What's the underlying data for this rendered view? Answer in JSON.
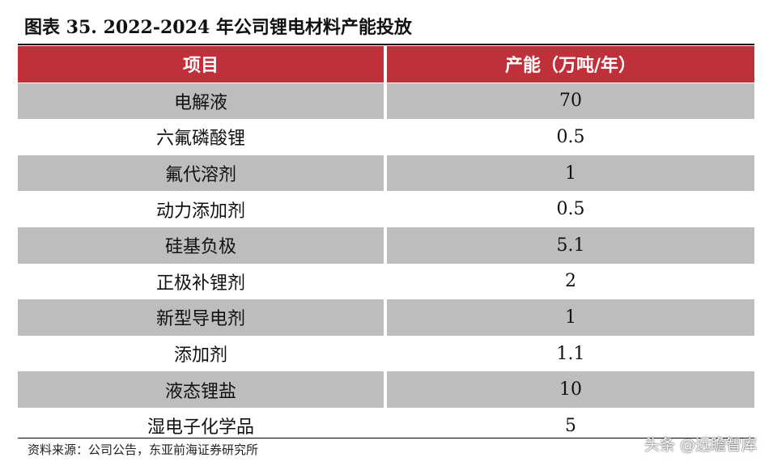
{
  "title": "图表 35. 2022-2024 年公司锂电材料产能投放",
  "table": {
    "headers": [
      "项目",
      "产能（万吨/年）"
    ],
    "rows": [
      {
        "item": "电解液",
        "capacity": "70"
      },
      {
        "item": "六氟磷酸锂",
        "capacity": "0.5"
      },
      {
        "item": "氟代溶剂",
        "capacity": "1"
      },
      {
        "item": "动力添加剂",
        "capacity": "0.5"
      },
      {
        "item": "硅基负极",
        "capacity": "5.1"
      },
      {
        "item": "正极补锂剂",
        "capacity": "2"
      },
      {
        "item": "新型导电剂",
        "capacity": "1"
      },
      {
        "item": "添加剂",
        "capacity": "1.1"
      },
      {
        "item": "液态锂盐",
        "capacity": "10"
      },
      {
        "item": "湿电子化学品",
        "capacity": "5"
      }
    ]
  },
  "source": "资料来源：公司公告，东亚前海证券研究所",
  "watermark": "头条 @远瞻智库",
  "colors": {
    "header_bg": "#c0303a",
    "shaded_row_bg": "#bdbdbd"
  }
}
